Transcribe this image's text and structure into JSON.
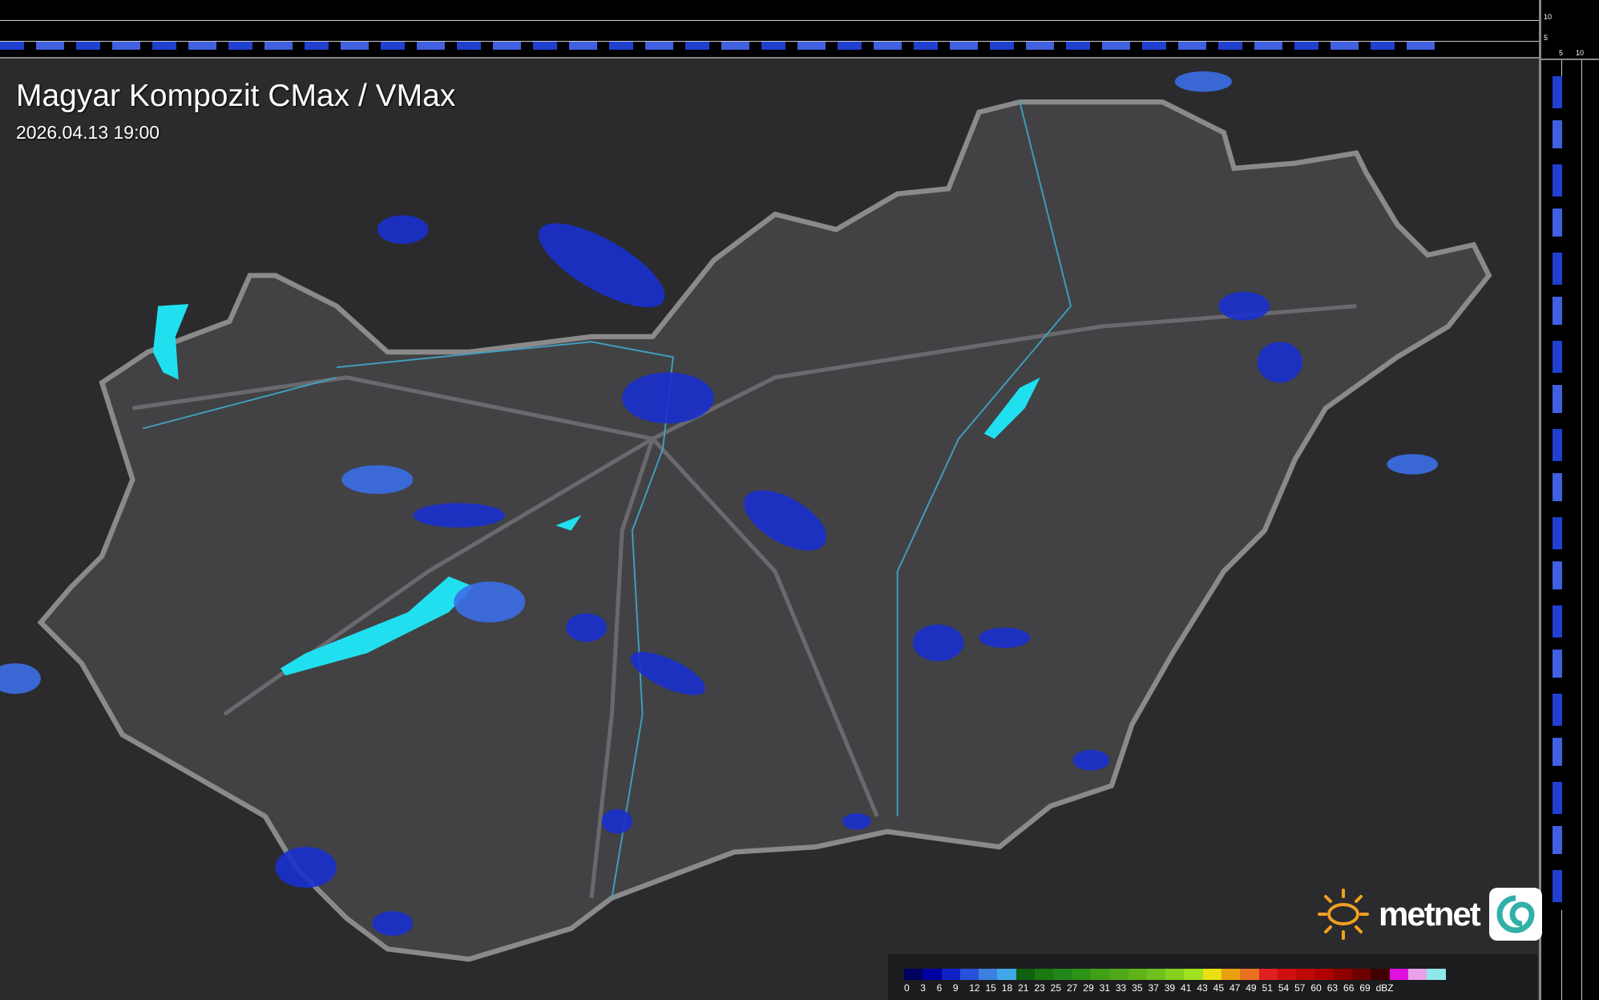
{
  "title": "Magyar Kompozit CMax / VMax",
  "timestamp": "2026.04.13 19:00",
  "profile_ticks": {
    "top": [
      "10",
      "5"
    ],
    "side": [
      "5",
      "10"
    ]
  },
  "brand": {
    "name": "metnet",
    "sun_color": "#f0a020"
  },
  "legend": {
    "unit": "dBZ",
    "labels": [
      "0",
      "3",
      "6",
      "9",
      "12",
      "15",
      "18",
      "21",
      "23",
      "25",
      "27",
      "29",
      "31",
      "33",
      "35",
      "37",
      "39",
      "41",
      "43",
      "45",
      "47",
      "49",
      "51",
      "54",
      "57",
      "60",
      "63",
      "66",
      "69"
    ],
    "colors": [
      "#000060",
      "#0000a0",
      "#1020c8",
      "#2850d8",
      "#3c80e0",
      "#40a8e8",
      "#106010",
      "#1c7810",
      "#208818",
      "#2c9418",
      "#40a018",
      "#50a818",
      "#60b418",
      "#70c020",
      "#88d020",
      "#a0e020",
      "#e8e010",
      "#e8a010",
      "#e87020",
      "#e02020",
      "#d01010",
      "#c00808",
      "#b00000",
      "#900000",
      "#700000",
      "#400000",
      "#e010e0",
      "#e8a0e8",
      "#90e8e8"
    ]
  },
  "colors": {
    "echo_weak": "#1a30d0",
    "echo_mid": "#3c70e8",
    "water": "#20e0f0",
    "border": "#8a8a8a",
    "rivers": "#40a0c0"
  }
}
